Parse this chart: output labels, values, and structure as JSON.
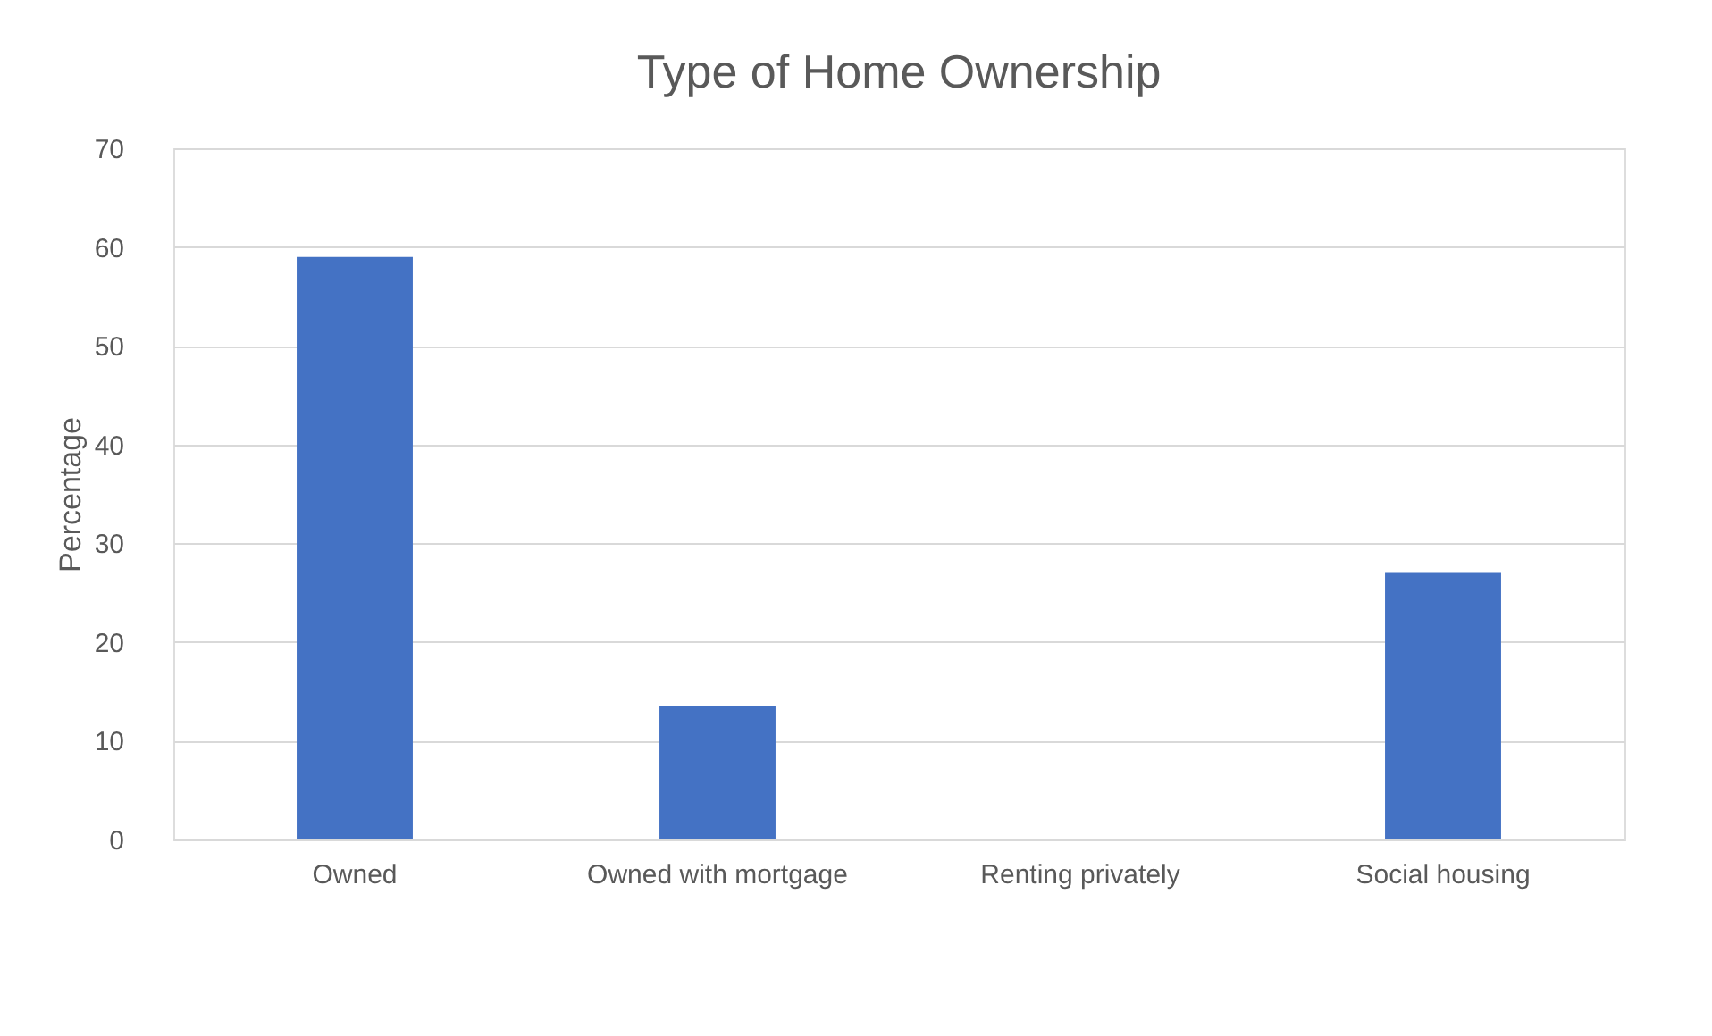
{
  "chart_data": {
    "type": "bar",
    "title": "Type of Home Ownership",
    "ylabel": "Percentage",
    "categories": [
      "Owned",
      "Owned with mortgage",
      "Renting privately",
      "Social housing"
    ],
    "values": [
      59,
      13.5,
      0,
      27
    ],
    "color": "#4472c4",
    "ylim": [
      0,
      70
    ],
    "yticks": [
      0,
      10,
      20,
      30,
      40,
      50,
      60,
      70
    ],
    "grid": "y"
  }
}
